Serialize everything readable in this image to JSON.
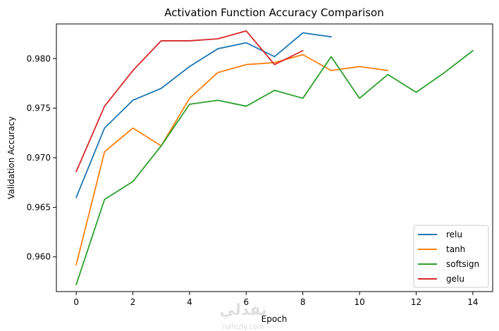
{
  "chart_data": {
    "type": "line",
    "title": "Activation Function Accuracy Comparison",
    "xlabel": "Epoch",
    "ylabel": "Validation Accuracy",
    "xlim": [
      -0.7,
      14.7
    ],
    "ylim": [
      0.9565,
      0.9835
    ],
    "x_ticks": [
      0,
      2,
      4,
      6,
      8,
      10,
      12,
      14
    ],
    "y_ticks": [
      0.96,
      0.965,
      0.97,
      0.975,
      0.98
    ],
    "y_tick_labels": [
      "0.960",
      "0.965",
      "0.970",
      "0.975",
      "0.980"
    ],
    "grid": false,
    "legend_position": "lower-right",
    "series": [
      {
        "name": "relu",
        "color": "#1f77b4",
        "x": [
          0,
          1,
          2,
          3,
          4,
          5,
          6,
          7,
          8,
          9
        ],
        "values": [
          0.966,
          0.973,
          0.9758,
          0.977,
          0.9792,
          0.981,
          0.9816,
          0.9802,
          0.9826,
          0.9822
        ]
      },
      {
        "name": "tanh",
        "color": "#ff7f0e",
        "x": [
          0,
          1,
          2,
          3,
          4,
          5,
          6,
          7,
          8,
          9,
          10,
          11
        ],
        "values": [
          0.9592,
          0.9706,
          0.973,
          0.9712,
          0.976,
          0.9786,
          0.9794,
          0.9796,
          0.9804,
          0.9788,
          0.9792,
          0.9788
        ]
      },
      {
        "name": "softsign",
        "color": "#2ca02c",
        "x": [
          0,
          1,
          2,
          3,
          4,
          5,
          6,
          7,
          8,
          9,
          10,
          11,
          12,
          13,
          14
        ],
        "values": [
          0.9572,
          0.9658,
          0.9676,
          0.9712,
          0.9754,
          0.9758,
          0.9752,
          0.9768,
          0.976,
          0.9802,
          0.976,
          0.9784,
          0.9766,
          0.9786,
          0.9808
        ]
      },
      {
        "name": "gelu",
        "color": "#d62728",
        "x": [
          0,
          1,
          2,
          3,
          4,
          5,
          6,
          7,
          8
        ],
        "values": [
          0.9686,
          0.9752,
          0.9788,
          0.9818,
          0.9818,
          0.982,
          0.9828,
          0.9794,
          0.9808
        ]
      }
    ]
  },
  "watermark": {
    "text": "نفذلي",
    "subtext": "nafezly.com"
  }
}
